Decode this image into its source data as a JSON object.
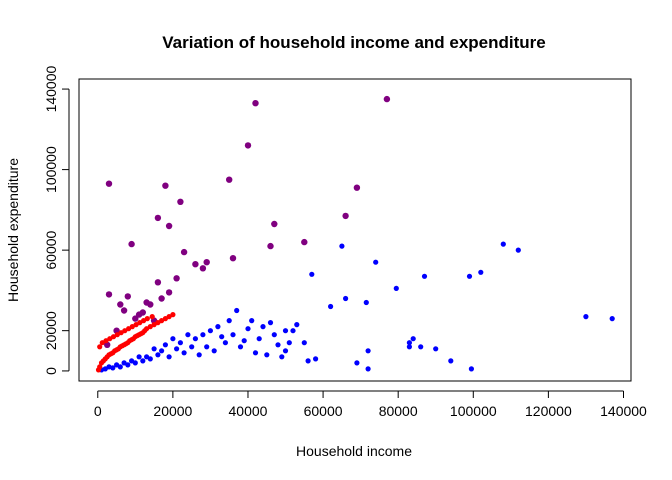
{
  "chart_data": {
    "type": "scatter",
    "title": "Variation of household income and expenditure",
    "xlabel": "Household income",
    "ylabel": "Household expenditure",
    "xlim": [
      -5000,
      142000
    ],
    "ylim": [
      -5000,
      145000
    ],
    "x_ticks": [
      0,
      20000,
      40000,
      60000,
      80000,
      100000,
      120000,
      140000
    ],
    "y_ticks": [
      0,
      20000,
      60000,
      100000,
      140000
    ],
    "grid": false,
    "colors": {
      "blue": "#0000ff",
      "red": "#ff0000",
      "overlap": "#800080"
    },
    "series": [
      {
        "color": "#0000ff",
        "x": [
          137000,
          130000,
          112000,
          108000,
          102000,
          99000,
          99500,
          94000,
          90000,
          87000,
          86000,
          84000,
          83000,
          83000,
          79500,
          74000,
          72000,
          72000,
          71500,
          69000,
          66000,
          65000,
          62000,
          58000,
          57000,
          56000,
          55000,
          53000,
          52000,
          51000,
          50000,
          50000,
          49000,
          48000,
          47000,
          46000,
          45000,
          44000,
          43000,
          42000,
          41000,
          40000,
          39000,
          38000,
          37000,
          36000,
          35000,
          34000,
          33000,
          32000,
          31000,
          30000,
          29000,
          28000,
          27000,
          26000,
          25000,
          24000,
          23000,
          22000,
          21000,
          20000,
          19000,
          18000,
          17000,
          16000,
          15000,
          14000,
          13000,
          12000,
          11000,
          10000,
          9000,
          8000,
          7000,
          6000,
          5000,
          4000,
          3000,
          2000,
          1000
        ],
        "y": [
          26000,
          27000,
          60000,
          63000,
          49000,
          47000,
          1000,
          5000,
          11000,
          47000,
          12000,
          16000,
          12000,
          14000,
          41000,
          54000,
          1000,
          10000,
          34000,
          4000,
          36000,
          62000,
          32000,
          6000,
          48000,
          5000,
          14000,
          23000,
          20000,
          14000,
          20000,
          10000,
          7000,
          13000,
          18000,
          24000,
          8000,
          22000,
          16000,
          9000,
          25000,
          21000,
          15000,
          12000,
          30000,
          18000,
          25000,
          14000,
          17000,
          22000,
          10000,
          20000,
          12000,
          18000,
          8000,
          16000,
          12000,
          18000,
          9000,
          14000,
          11000,
          16000,
          7000,
          13000,
          10000,
          8000,
          11000,
          6000,
          7000,
          5000,
          7000,
          4000,
          5000,
          3000,
          4000,
          2000,
          3000,
          1500,
          2000,
          1000,
          500
        ]
      },
      {
        "color": "#800080",
        "x": [
          77000,
          42000,
          40000,
          35000,
          3000,
          18000,
          22000,
          69000,
          19000,
          16000,
          47000,
          66000,
          9000,
          23000,
          55000,
          26000,
          16000,
          21000,
          29000,
          46000,
          36000,
          28000,
          19000,
          17000,
          14000,
          11000,
          8000,
          6000,
          5000,
          3000,
          2500,
          7000,
          10000,
          12000,
          13000,
          15000
        ],
        "y": [
          135000,
          133000,
          112000,
          95000,
          93000,
          92000,
          84000,
          91000,
          72000,
          76000,
          73000,
          77000,
          63000,
          59000,
          64000,
          53000,
          44000,
          46000,
          54000,
          62000,
          56000,
          51000,
          39000,
          36000,
          33000,
          28000,
          37000,
          33000,
          20000,
          38000,
          13000,
          30000,
          26000,
          29000,
          34000,
          25000
        ]
      },
      {
        "color": "#ff0000",
        "x": [
          200,
          500,
          1000,
          1500,
          2000,
          2500,
          3000,
          3500,
          4000,
          4500,
          5000,
          5500,
          6000,
          6500,
          7000,
          7500,
          8000,
          8500,
          9000,
          9500,
          10000,
          10500,
          11000,
          11500,
          12000,
          12500,
          13000,
          14000,
          15000,
          16000,
          17000,
          18000,
          19000,
          20000,
          500,
          1200,
          2200,
          3200,
          4200,
          5200,
          6200,
          7200,
          8200,
          9200,
          10200,
          11200,
          12200,
          13200,
          14500
        ],
        "y": [
          500,
          2000,
          4000,
          5000,
          6000,
          7000,
          8000,
          8500,
          9000,
          10000,
          10500,
          11000,
          12000,
          12500,
          13000,
          13500,
          14000,
          15000,
          15500,
          16000,
          17000,
          17500,
          18000,
          18500,
          19000,
          20000,
          21000,
          22000,
          23000,
          24000,
          25000,
          26000,
          27000,
          28000,
          12000,
          14000,
          15000,
          16000,
          17000,
          18000,
          19000,
          20000,
          21000,
          22000,
          23000,
          24000,
          25000,
          26000,
          27000
        ]
      }
    ]
  }
}
